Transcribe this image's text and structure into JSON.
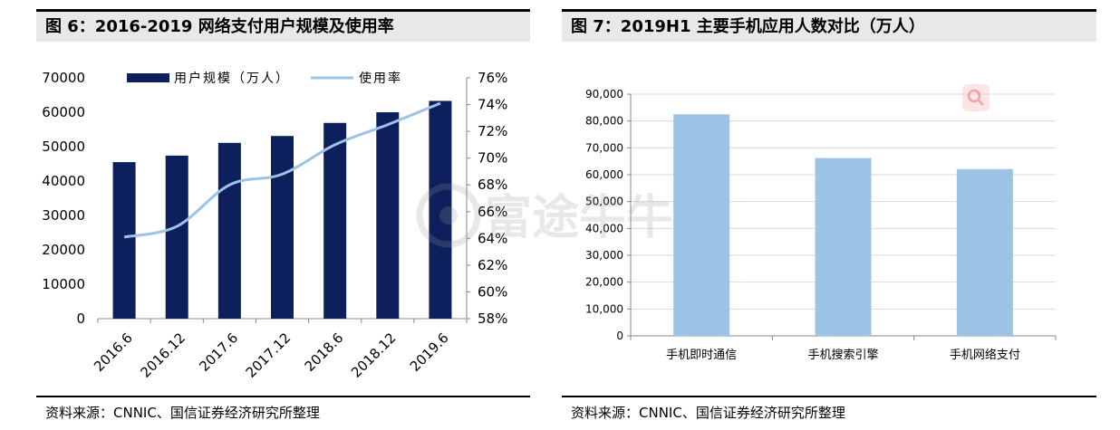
{
  "left": {
    "title": "图 6：2016-2019 网络支付用户规模及使用率",
    "source": "资料来源：CNNIC、国信证券经济研究所整理",
    "chart_data": {
      "type": "bar",
      "categories": [
        "2016.6",
        "2016.12",
        "2017.6",
        "2017.12",
        "2018.6",
        "2018.12",
        "2019.6"
      ],
      "series": [
        {
          "name": "用户规模（万人）",
          "type": "bar",
          "axis": "left",
          "color": "#0d1f5c",
          "values": [
            45500,
            47400,
            51100,
            53100,
            56900,
            60000,
            63300
          ]
        },
        {
          "name": "使用率",
          "type": "line",
          "axis": "right",
          "color": "#9dc3e6",
          "values": [
            64.1,
            64.9,
            68.0,
            68.8,
            71.0,
            72.5,
            74.1
          ]
        }
      ],
      "ylim": [
        0,
        70000
      ],
      "yticks": [
        "0",
        "10000",
        "20000",
        "30000",
        "40000",
        "50000",
        "60000",
        "70000"
      ],
      "y2lim": [
        58,
        76
      ],
      "y2ticks": [
        "58%",
        "60%",
        "62%",
        "64%",
        "66%",
        "68%",
        "70%",
        "72%",
        "74%",
        "76%"
      ],
      "legend_position": "top",
      "grid": false
    }
  },
  "right": {
    "title": "图 7：2019H1 主要手机应用人数对比（万人）",
    "source": "资料来源：CNNIC、国信证券经济研究所整理",
    "chart_data": {
      "type": "bar",
      "categories": [
        "手机即时通信",
        "手机搜索引擎",
        "手机网络支付"
      ],
      "values": [
        82500,
        66200,
        62100
      ],
      "color": "#9dc3e6",
      "ylim": [
        0,
        90000
      ],
      "yticks": [
        "0",
        "10,000",
        "20,000",
        "30,000",
        "40,000",
        "50,000",
        "60,000",
        "70,000",
        "80,000",
        "90,000"
      ],
      "grid": true
    }
  },
  "watermark": {
    "text": "富途牛牛",
    "icon": "search-icon"
  }
}
